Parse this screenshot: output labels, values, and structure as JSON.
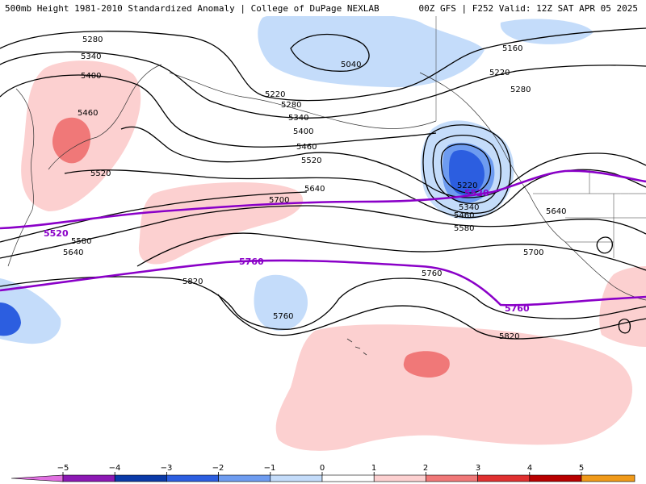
{
  "header": {
    "title_left": "500mb Height 1981-2010 Standardized Anomaly | College of DuPage NEXLAB",
    "title_right": "00Z GFS | F252 Valid: 12Z SAT APR 05 2025"
  },
  "map": {
    "height_labels": [
      "5280",
      "5340",
      "5400",
      "5460",
      "5520",
      "5040",
      "5160",
      "5220",
      "5280",
      "5220",
      "5280",
      "5340",
      "5400",
      "5460",
      "5520",
      "5640",
      "5700",
      "5580",
      "5640",
      "5220",
      "5340",
      "5460",
      "5580",
      "5640",
      "5700",
      "5760",
      "5820",
      "5760",
      "5820"
    ],
    "reference_labels": [
      "5520",
      "5520",
      "5760",
      "5760"
    ]
  },
  "colorbar": {
    "ticks": [
      "−5",
      "−4",
      "−3",
      "−2",
      "−1",
      "0",
      "1",
      "2",
      "3",
      "4",
      "5"
    ],
    "colors": [
      "#e070e0",
      "#8c18b4",
      "#0a3aa8",
      "#2c5ee0",
      "#6e9cf0",
      "#c4dcfa",
      "#ffffff",
      "#fcd0d0",
      "#f07878",
      "#e03030",
      "#b80000",
      "#f09a1a",
      "#f8c83a"
    ]
  }
}
